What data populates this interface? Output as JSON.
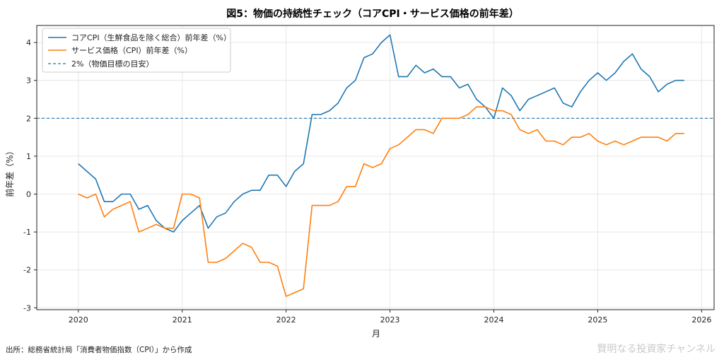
{
  "chart_data": {
    "type": "line",
    "title": "図5：物価の持続性チェック（コアCPI・サービス価格の前年差）",
    "xlabel": "月",
    "ylabel": "前年差（%）",
    "xlim": [
      2019.6,
      2026.12
    ],
    "ylim": [
      -3.05,
      4.45
    ],
    "xticks": [
      2020,
      2021,
      2022,
      2023,
      2024,
      2025,
      2026
    ],
    "yticks": [
      -3,
      -2,
      -1,
      0,
      1,
      2,
      3,
      4
    ],
    "grid": true,
    "legend_position": "upper-left",
    "x": [
      2020.0,
      2020.083,
      2020.167,
      2020.25,
      2020.333,
      2020.417,
      2020.5,
      2020.583,
      2020.667,
      2020.75,
      2020.833,
      2020.917,
      2021.0,
      2021.083,
      2021.167,
      2021.25,
      2021.333,
      2021.417,
      2021.5,
      2021.583,
      2021.667,
      2021.75,
      2021.833,
      2021.917,
      2022.0,
      2022.083,
      2022.167,
      2022.25,
      2022.333,
      2022.417,
      2022.5,
      2022.583,
      2022.667,
      2022.75,
      2022.833,
      2022.917,
      2023.0,
      2023.083,
      2023.167,
      2023.25,
      2023.333,
      2023.417,
      2023.5,
      2023.583,
      2023.667,
      2023.75,
      2023.833,
      2023.917,
      2024.0,
      2024.083,
      2024.167,
      2024.25,
      2024.333,
      2024.417,
      2024.5,
      2024.583,
      2024.667,
      2024.75,
      2024.833,
      2024.917,
      2025.0,
      2025.083,
      2025.167,
      2025.25,
      2025.333,
      2025.417,
      2025.5,
      2025.583,
      2025.667,
      2025.75,
      2025.833
    ],
    "series": [
      {
        "name": "コアCPI（生鮮食品を除く総合）前年差（%）",
        "color": "#1f77b4",
        "style": "solid",
        "values": [
          0.8,
          0.6,
          0.4,
          -0.2,
          -0.2,
          0.0,
          0.0,
          -0.4,
          -0.3,
          -0.7,
          -0.9,
          -1.0,
          -0.7,
          -0.5,
          -0.3,
          -0.9,
          -0.6,
          -0.5,
          -0.2,
          0.0,
          0.1,
          0.1,
          0.5,
          0.5,
          0.2,
          0.6,
          0.8,
          2.1,
          2.1,
          2.2,
          2.4,
          2.8,
          3.0,
          3.6,
          3.7,
          4.0,
          4.2,
          3.1,
          3.1,
          3.4,
          3.2,
          3.3,
          3.1,
          3.1,
          2.8,
          2.9,
          2.5,
          2.3,
          2.0,
          2.8,
          2.6,
          2.2,
          2.5,
          2.6,
          2.7,
          2.8,
          2.4,
          2.3,
          2.7,
          3.0,
          3.2,
          3.0,
          3.2,
          3.5,
          3.7,
          3.3,
          3.1,
          2.7,
          2.9,
          3.0,
          3.0
        ]
      },
      {
        "name": "サービス価格（CPI）前年差（%）",
        "color": "#ff7f0e",
        "style": "solid",
        "values": [
          0.0,
          -0.1,
          0.0,
          -0.6,
          -0.4,
          -0.3,
          -0.2,
          -1.0,
          -0.9,
          -0.8,
          -0.9,
          -0.9,
          0.0,
          0.0,
          -0.1,
          -1.8,
          -1.8,
          -1.7,
          -1.5,
          -1.3,
          -1.4,
          -1.8,
          -1.8,
          -1.9,
          -2.7,
          -2.6,
          -2.5,
          -0.3,
          -0.3,
          -0.3,
          -0.2,
          0.2,
          0.2,
          0.8,
          0.7,
          0.8,
          1.2,
          1.3,
          1.5,
          1.7,
          1.7,
          1.6,
          2.0,
          2.0,
          2.0,
          2.1,
          2.3,
          2.3,
          2.2,
          2.2,
          2.1,
          1.7,
          1.6,
          1.7,
          1.4,
          1.4,
          1.3,
          1.5,
          1.5,
          1.6,
          1.4,
          1.3,
          1.4,
          1.3,
          1.4,
          1.5,
          1.5,
          1.5,
          1.4,
          1.6,
          1.6
        ]
      }
    ],
    "reference_line": {
      "name": "2%（物価目標の目安）",
      "y": 2,
      "color": "#1f77b4",
      "style": "dashed"
    }
  },
  "footer": {
    "source": "出所：総務省統計局「消費者物価指数（CPI）」から作成",
    "watermark": "賢明なる投資家チャンネル"
  }
}
